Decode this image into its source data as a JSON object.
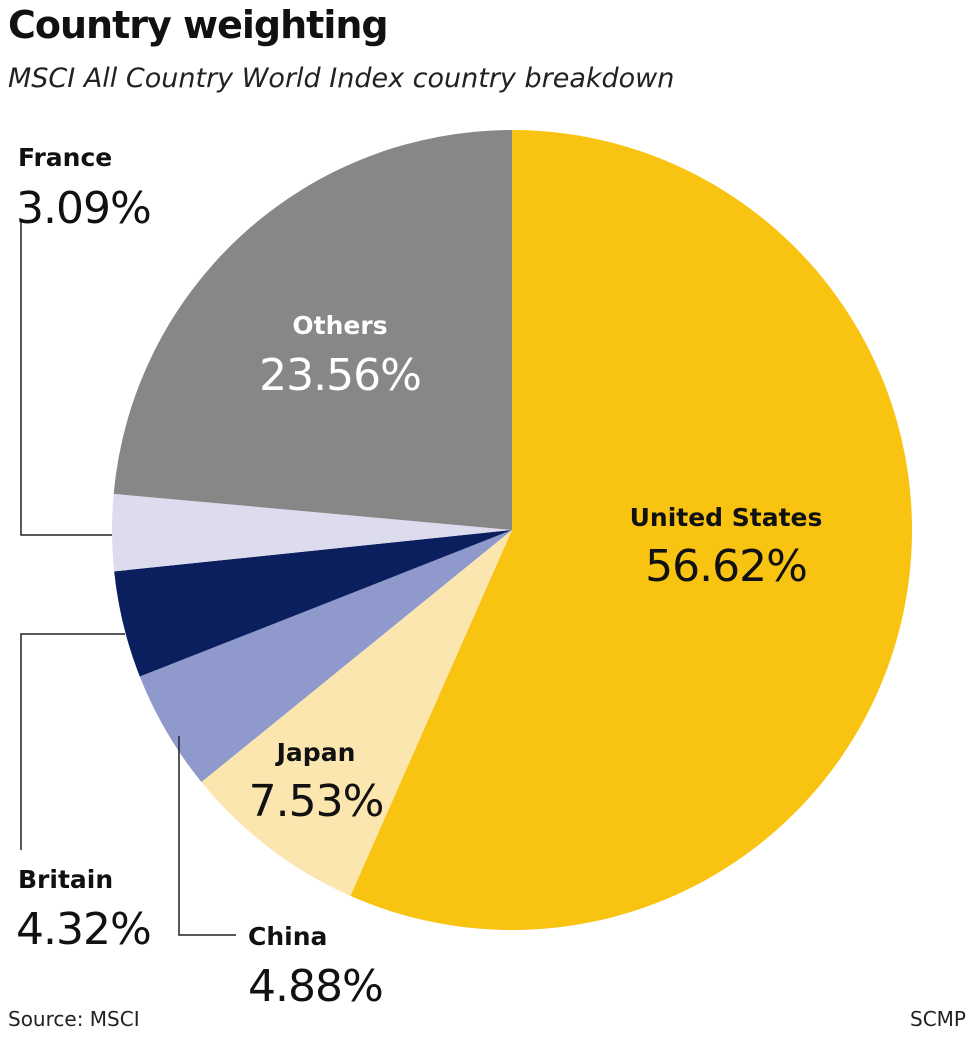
{
  "header": {
    "title": "Country weighting",
    "subtitle": "MSCI All Country World Index country breakdown"
  },
  "footer": {
    "source": "Source: MSCI",
    "credit": "SCMP"
  },
  "colors": {
    "united_states": "#f9c312",
    "japan": "#fbe6b0",
    "china": "#8f99cc",
    "britain": "#0b1f5e",
    "france": "#dcdcee",
    "others": "#878787"
  },
  "chart_data": {
    "type": "pie",
    "title": "Country weighting",
    "subtitle": "MSCI All Country World Index country breakdown",
    "start": "12 o'clock",
    "direction": "clockwise",
    "slices": [
      {
        "key": "united_states",
        "label": "United States",
        "value": 56.62,
        "value_label": "56.62%",
        "color": "#f9c312",
        "label_color": "#111111"
      },
      {
        "key": "japan",
        "label": "Japan",
        "value": 7.53,
        "value_label": "7.53%",
        "color": "#fbe6b0",
        "label_color": "#111111"
      },
      {
        "key": "china",
        "label": "China",
        "value": 4.88,
        "value_label": "4.88%",
        "color": "#8f99cc",
        "label_color": "#111111"
      },
      {
        "key": "britain",
        "label": "Britain",
        "value": 4.32,
        "value_label": "4.32%",
        "color": "#0b1f5e",
        "label_color": "#111111"
      },
      {
        "key": "france",
        "label": "France",
        "value": 3.09,
        "value_label": "3.09%",
        "color": "#dcdcee",
        "label_color": "#111111"
      },
      {
        "key": "others",
        "label": "Others",
        "value": 23.56,
        "value_label": "23.56%",
        "color": "#878787",
        "label_color": "#ffffff"
      }
    ]
  }
}
